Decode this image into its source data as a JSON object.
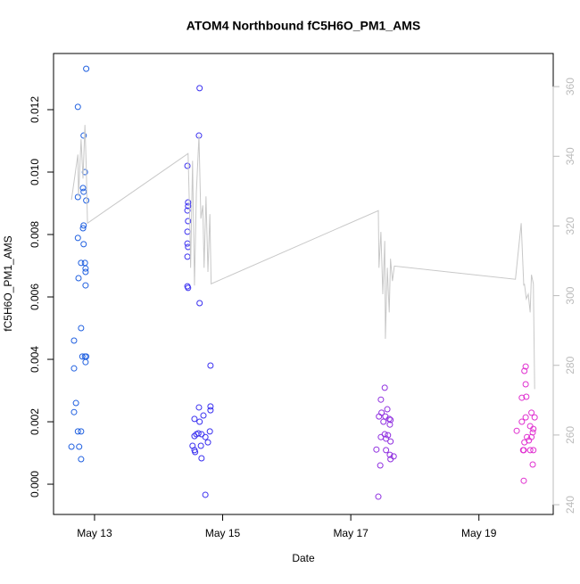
{
  "chart_data": {
    "type": "scatter",
    "title": "ATOM4 Northbound fC5H6O_PM1_AMS",
    "xlabel": "Date",
    "ylabel": "fC5H6O_PM1_AMS",
    "xlim": [
      12.36,
      20.16
    ],
    "xticks": [
      {
        "value": 13,
        "label": "May 13"
      },
      {
        "value": 15,
        "label": "May 15"
      },
      {
        "value": 17,
        "label": "May 17"
      },
      {
        "value": 19,
        "label": "May 19"
      }
    ],
    "ylim": [
      -0.00097,
      0.0138
    ],
    "yticks": [
      {
        "value": 0,
        "label": "0.000"
      },
      0.002,
      0.004,
      0.006,
      0.008,
      {
        "value": 0.01,
        "label": "0.010"
      },
      0.012
    ],
    "y2lim": [
      237.2,
      369.5
    ],
    "y2ticks": [
      240,
      260,
      280,
      300,
      320,
      340,
      360
    ],
    "series": [
      {
        "type": "scatter",
        "x": [
          12.87,
          12.74,
          12.83,
          12.85,
          12.82,
          12.83,
          12.87,
          12.74,
          12.83,
          12.82,
          12.74,
          12.83,
          12.79,
          12.85,
          12.86,
          12.86,
          12.75,
          12.86,
          12.79,
          12.68,
          12.81,
          12.85,
          12.87,
          12.86,
          12.68,
          12.71,
          12.68,
          12.74,
          12.79,
          12.64,
          12.76,
          12.79,
          14.64,
          14.63,
          14.45,
          14.46,
          14.46,
          14.45,
          14.46,
          14.45,
          14.45,
          14.46,
          14.45,
          14.45,
          14.46,
          14.64,
          14.81,
          14.81,
          14.63,
          14.81,
          14.7,
          14.56,
          14.64,
          14.8,
          14.62,
          14.59,
          14.67,
          14.56,
          14.73,
          14.77,
          14.53,
          14.66,
          14.56,
          14.57,
          14.67,
          14.73,
          17.53,
          17.47,
          17.57,
          17.48,
          17.44,
          17.54,
          17.6,
          17.62,
          17.51,
          17.61,
          17.53,
          17.58,
          17.47,
          17.55,
          17.62,
          17.4,
          17.55,
          17.61,
          17.67,
          17.62,
          17.46,
          17.43,
          19.73,
          19.71,
          19.73,
          19.67,
          19.74,
          19.82,
          19.87,
          19.73,
          19.67,
          19.8,
          19.85,
          19.84,
          19.59,
          19.82,
          19.75,
          19.78,
          19.71,
          19.8,
          19.7,
          19.69,
          19.85,
          19.84,
          19.7
        ],
        "values": [
          0.01331,
          0.01209,
          0.01117,
          0.01,
          0.00949,
          0.00937,
          0.00909,
          0.0092,
          0.00829,
          0.0082,
          0.00789,
          0.00769,
          0.00709,
          0.00709,
          0.00691,
          0.0068,
          0.0066,
          0.00637,
          0.005,
          0.0046,
          0.00409,
          0.00409,
          0.00409,
          0.00391,
          0.00371,
          0.0026,
          0.00231,
          0.00169,
          0.00169,
          0.0012,
          0.0012,
          0.0008,
          0.01269,
          0.01117,
          0.0102,
          0.00903,
          0.00891,
          0.00877,
          0.00843,
          0.00809,
          0.00771,
          0.0076,
          0.00729,
          0.00634,
          0.00629,
          0.0058,
          0.0038,
          0.00249,
          0.00246,
          0.00237,
          0.0022,
          0.00209,
          0.002,
          0.00169,
          0.00163,
          0.0016,
          0.0016,
          0.00154,
          0.00151,
          0.00134,
          0.00123,
          0.00123,
          0.00109,
          0.00103,
          0.00083,
          -0.00034,
          0.00309,
          0.00271,
          0.0024,
          0.00229,
          0.00217,
          0.00217,
          0.00209,
          0.00206,
          0.002,
          0.00191,
          0.0016,
          0.00157,
          0.00151,
          0.00146,
          0.00137,
          0.00111,
          0.00109,
          0.00094,
          0.00089,
          0.0008,
          0.0006,
          -0.0004,
          0.00377,
          0.00363,
          0.0032,
          0.00277,
          0.0028,
          0.00229,
          0.00214,
          0.00214,
          0.002,
          0.00186,
          0.00177,
          0.00166,
          0.00171,
          0.00151,
          0.00151,
          0.0014,
          0.00134,
          0.00109,
          0.00109,
          0.00109,
          0.00109,
          0.00063,
          0.00011
        ],
        "colors": [
          "#2060e0",
          "#2060e0",
          "#2060e0",
          "#2060e0",
          "#2060e0",
          "#2060e0",
          "#2060e0",
          "#2060e0",
          "#2060e0",
          "#2060e0",
          "#2060e0",
          "#2060e0",
          "#2060e0",
          "#2060e0",
          "#2060e0",
          "#2060e0",
          "#2060e0",
          "#2060e0",
          "#2060e0",
          "#2060e0",
          "#2060e0",
          "#2060e0",
          "#2060e0",
          "#2060e0",
          "#2060e0",
          "#2060e0",
          "#2060e0",
          "#2060e0",
          "#2060e0",
          "#2060e0",
          "#2060e0",
          "#2060e0",
          "#3a30f0",
          "#3a30f0",
          "#3a30f0",
          "#3a30f0",
          "#3a30f0",
          "#3a30f0",
          "#3a30f0",
          "#3a30f0",
          "#3a30f0",
          "#3a30f0",
          "#3a30f0",
          "#3a30f0",
          "#3a30f0",
          "#3a30f0",
          "#3a30f0",
          "#3a30f0",
          "#3a30f0",
          "#3a30f0",
          "#3a30f0",
          "#3a30f0",
          "#3a30f0",
          "#3a30f0",
          "#3a30f0",
          "#3a30f0",
          "#3a30f0",
          "#3a30f0",
          "#3a30f0",
          "#3a30f0",
          "#3a30f0",
          "#3a30f0",
          "#3a30f0",
          "#3a30f0",
          "#3a30f0",
          "#3a30f0",
          "#9030e0",
          "#9030e0",
          "#9030e0",
          "#9030e0",
          "#9030e0",
          "#9030e0",
          "#9030e0",
          "#9030e0",
          "#9030e0",
          "#9030e0",
          "#9030e0",
          "#9030e0",
          "#9030e0",
          "#9030e0",
          "#9030e0",
          "#9030e0",
          "#9030e0",
          "#9030e0",
          "#9030e0",
          "#9030e0",
          "#9030e0",
          "#9030e0",
          "#e030d0",
          "#e030d0",
          "#e030d0",
          "#e030d0",
          "#e030d0",
          "#e030d0",
          "#e030d0",
          "#e030d0",
          "#e030d0",
          "#e030d0",
          "#e030d0",
          "#e030d0",
          "#e030d0",
          "#e030d0",
          "#e030d0",
          "#e030d0",
          "#e030d0",
          "#e030d0",
          "#e030d0",
          "#e030d0",
          "#e030d0",
          "#e030d0",
          "#e030d0"
        ]
      },
      {
        "type": "line",
        "axis": "y2",
        "color": "#c8c8c8",
        "x": [
          12.64,
          12.74,
          12.75,
          12.79,
          12.82,
          12.85,
          12.87,
          12.89,
          14.46,
          14.48,
          14.5,
          14.53,
          14.56,
          14.59,
          14.63,
          14.66,
          14.69,
          14.71,
          14.74,
          14.77,
          14.8,
          14.82,
          17.43,
          17.44,
          17.47,
          17.5,
          17.53,
          17.54,
          17.57,
          17.6,
          17.62,
          17.65,
          17.68,
          19.57,
          19.66,
          19.7,
          19.71,
          19.74,
          19.77,
          19.8,
          19.82,
          19.85,
          19.87
        ],
        "values": [
          327.5,
          340.5,
          328.5,
          344.9,
          333.6,
          349.0,
          337.4,
          320.8,
          340.8,
          326.4,
          308.0,
          338.7,
          302.9,
          329.8,
          345.9,
          322.1,
          325.9,
          308.0,
          328.5,
          306.8,
          323.4,
          303.4,
          324.4,
          308.0,
          318.3,
          300.4,
          315.7,
          287.6,
          308.0,
          295.2,
          310.6,
          304.2,
          308.5,
          304.7,
          320.8,
          302.9,
          303.4,
          299.1,
          300.4,
          295.2,
          306.0,
          303.4,
          273.2
        ]
      }
    ]
  }
}
